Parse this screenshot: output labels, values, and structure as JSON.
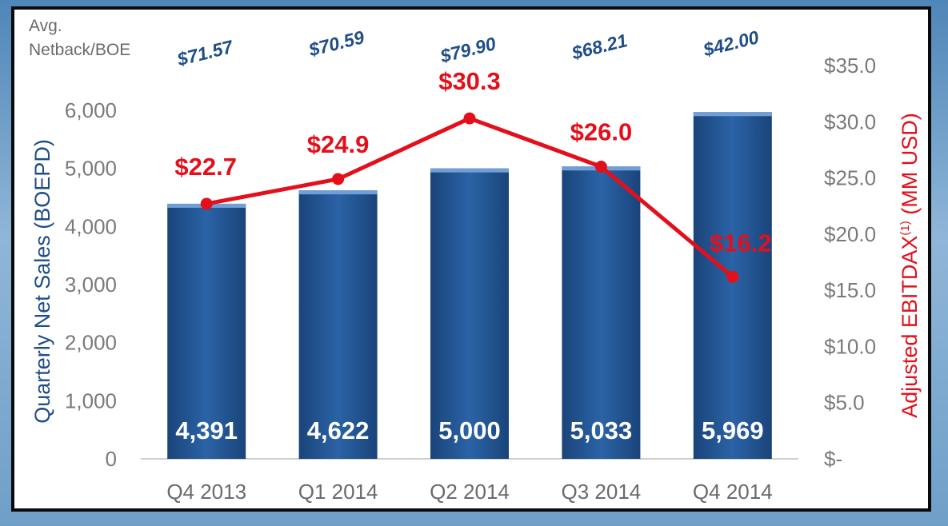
{
  "chart_data": {
    "type": "bar",
    "categories": [
      "Q4 2013",
      "Q1 2014",
      "Q2 2014",
      "Q3 2014",
      "Q4 2014"
    ],
    "series": [
      {
        "name": "Quarterly Net Sales (BOEPD)",
        "type": "bar",
        "axis": "left",
        "values": [
          4391,
          4622,
          5000,
          5033,
          5969
        ]
      },
      {
        "name": "Adjusted EBITDAX(1) (MM USD)",
        "type": "line",
        "axis": "right",
        "values": [
          22.7,
          24.9,
          30.3,
          26.0,
          16.2
        ]
      }
    ],
    "bar_labels": [
      "4,391",
      "4,622",
      "5,000",
      "5,033",
      "5,969"
    ],
    "line_labels": [
      "$22.7",
      "$24.9",
      "$30.3",
      "$26.0",
      "$16.2"
    ],
    "netback": {
      "label_line1": "Avg.",
      "label_line2": "Netback/BOE",
      "values": [
        "$71.57",
        "$70.59",
        "$79.90",
        "$68.21",
        "$42.00"
      ]
    },
    "ylabel_left": "Quarterly Net Sales (BOEPD)",
    "ylabel_right_main": "Adjusted EBITDAX",
    "ylabel_right_sup": "(1)",
    "ylabel_right_tail": " (MM USD)",
    "ylim_left": [
      0,
      6000
    ],
    "ylim_right": [
      0,
      35
    ],
    "yticks_left": [
      0,
      1000,
      2000,
      3000,
      4000,
      5000,
      6000
    ],
    "yticks_left_labels": [
      "0",
      "1,000",
      "2,000",
      "3,000",
      "4,000",
      "5,000",
      "6,000"
    ],
    "yticks_right": [
      0,
      5,
      10,
      15,
      20,
      25,
      30,
      35
    ],
    "yticks_right_labels": [
      "$-",
      "$5.0",
      "$10.0",
      "$15.0",
      "$20.0",
      "$25.0",
      "$30.0",
      "$35.0"
    ],
    "grid": false,
    "colors": {
      "bar": "#1f4e86",
      "bar_light": "#3b70b3",
      "line": "#e3101b",
      "netback": "#1f4e86",
      "left_axis_label": "#1f4e86",
      "right_axis_label": "#e3101b"
    }
  }
}
